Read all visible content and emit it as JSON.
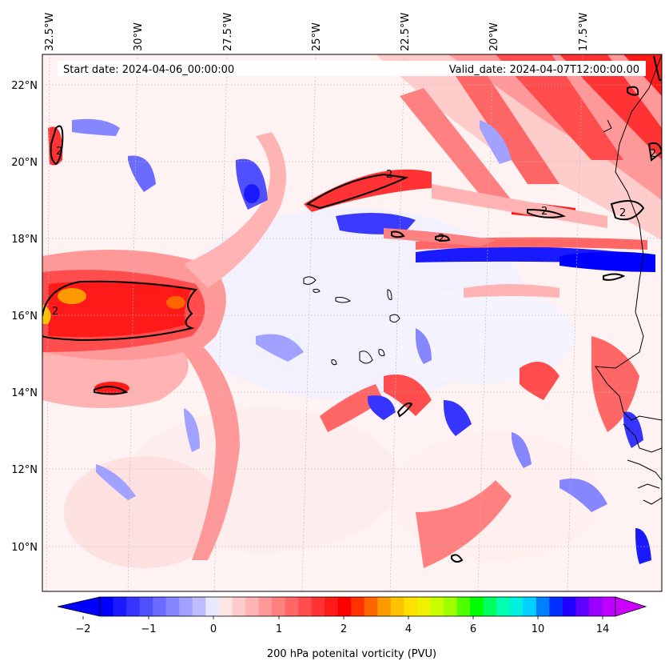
{
  "header": {
    "start_label": "Start date: 2024-04-06_00:00:00",
    "valid_label": "Valid_date: 2024-04-07T12:00:00.00"
  },
  "map": {
    "lon_ticks": [
      "32.5°W",
      "30°W",
      "27.5°W",
      "25°W",
      "22.5°W",
      "20°W",
      "17.5°W"
    ],
    "lat_ticks": [
      "22°N",
      "20°N",
      "18°N",
      "16°N",
      "14°N",
      "12°N",
      "10°N"
    ],
    "contour_level_label": "2",
    "gridlines": true
  },
  "colorbar": {
    "title": "200 hPa potenital vorticity (PVU)",
    "tick_labels": [
      "−2",
      "−1",
      "0",
      "1",
      "2",
      "4",
      "6",
      "10",
      "14"
    ],
    "colors": [
      "#0000ff",
      "#1a1aff",
      "#3535ff",
      "#5050ff",
      "#6b6bff",
      "#8686ff",
      "#a1a1ff",
      "#bcbcff",
      "#e8e8ff",
      "#ffe6e6",
      "#ffcccc",
      "#ffb3b3",
      "#ff9999",
      "#ff8080",
      "#ff6666",
      "#ff4d4d",
      "#ff3333",
      "#ff1a1a",
      "#ff0000",
      "#ff3300",
      "#ff6600",
      "#ff9900",
      "#ffc200",
      "#ffe000",
      "#f0f000",
      "#c8ff00",
      "#a0ff00",
      "#50ff00",
      "#00ff00",
      "#00ff60",
      "#00ffb0",
      "#00f0e0",
      "#00d0ff",
      "#0080ff",
      "#0030ff",
      "#2000ff",
      "#6000ff",
      "#9900ff",
      "#c000ff"
    ]
  }
}
